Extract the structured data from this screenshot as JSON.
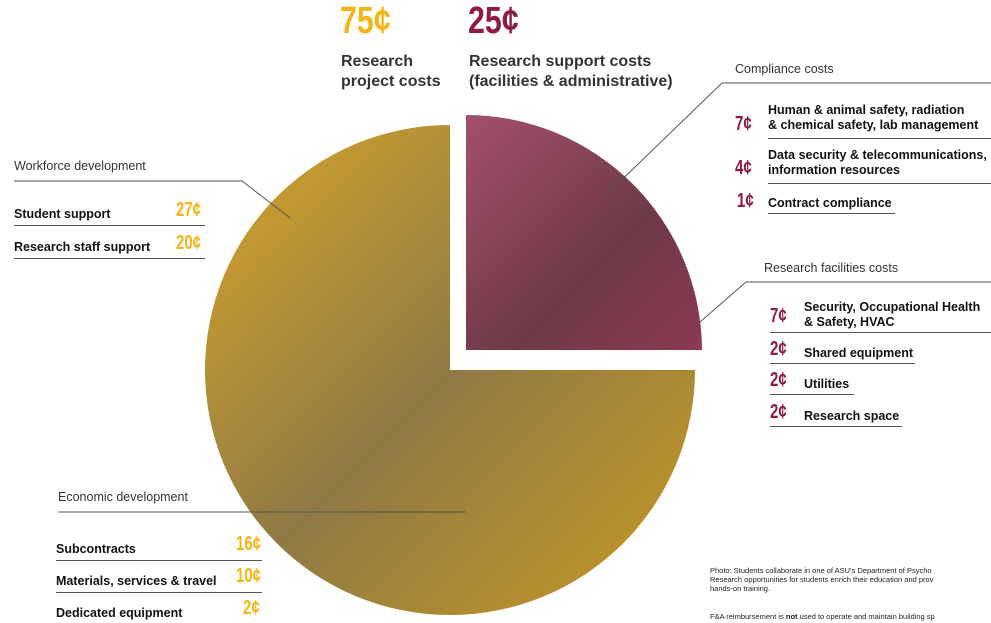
{
  "header": {
    "project": {
      "amount": "75¢",
      "label": [
        "Research",
        "project costs"
      ]
    },
    "support": {
      "amount": "25¢",
      "label": [
        "Research support costs",
        "(facilities & administrative)"
      ]
    }
  },
  "workforce": {
    "title": "Workforce development",
    "items": [
      {
        "label": "Student support",
        "amount": "27¢"
      },
      {
        "label": "Research staff support",
        "amount": "20¢"
      }
    ]
  },
  "economic": {
    "title": "Economic development",
    "items": [
      {
        "label": "Subcontracts",
        "amount": "16¢"
      },
      {
        "label": "Materials, services & travel",
        "amount": "10¢"
      },
      {
        "label": "Dedicated equipment",
        "amount": "2¢"
      }
    ]
  },
  "compliance": {
    "title": "Compliance costs",
    "items": [
      {
        "label": [
          "Human & animal safety, radiation",
          "& chemical safety, lab management"
        ],
        "amount": "7¢"
      },
      {
        "label": [
          "Data security & telecommunications,",
          "information resources"
        ],
        "amount": "4¢"
      },
      {
        "label": [
          "Contract compliance"
        ],
        "amount": "1¢"
      }
    ]
  },
  "facilities": {
    "title": "Research facilities costs",
    "items": [
      {
        "label": [
          "Security, Occupational Health",
          "& Safety, HVAC"
        ],
        "amount": "7¢"
      },
      {
        "label": [
          "Shared equipment"
        ],
        "amount": "2¢"
      },
      {
        "label": [
          "Utilities"
        ],
        "amount": "2¢"
      },
      {
        "label": [
          "Research space"
        ],
        "amount": "2¢"
      }
    ]
  },
  "footer": {
    "caption": [
      "Photo: Students collaborate in one of ASU's Department of Psycho",
      "Research opportunities for students enrich their education and prov",
      "hands-on training."
    ],
    "note": {
      "before": "F&A reimbursement is ",
      "bold": "not",
      "after": " used to operate and maintain building sp"
    }
  }
}
